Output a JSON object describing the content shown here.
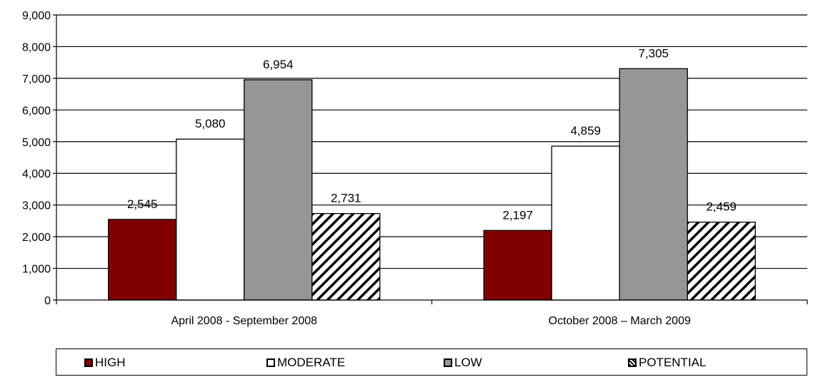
{
  "chart_data": {
    "type": "bar",
    "categories": [
      "April 2008 - September 2008",
      "October 2008 – March 2009"
    ],
    "series": [
      {
        "name": "HIGH",
        "values": [
          2545,
          2197
        ],
        "labels": [
          "2,545",
          "2,197"
        ],
        "color": "#800000",
        "pattern": "solid"
      },
      {
        "name": "MODERATE",
        "values": [
          5080,
          4859
        ],
        "labels": [
          "5,080",
          "4,859"
        ],
        "color": "#ffffff",
        "pattern": "solid"
      },
      {
        "name": "LOW",
        "values": [
          6954,
          7305
        ],
        "labels": [
          "6,954",
          "7,305"
        ],
        "color": "#969696",
        "pattern": "solid"
      },
      {
        "name": "POTENTIAL",
        "values": [
          2731,
          2459
        ],
        "labels": [
          "2,731",
          "2,459"
        ],
        "color": "#ffffff",
        "pattern": "diagonal-hatch"
      }
    ],
    "ylim": [
      0,
      9000
    ],
    "yticks": [
      0,
      1000,
      2000,
      3000,
      4000,
      5000,
      6000,
      7000,
      8000,
      9000
    ],
    "ytick_labels": [
      "0",
      "1,000",
      "2,000",
      "3,000",
      "4,000",
      "5,000",
      "6,000",
      "7,000",
      "8,000",
      "9,000"
    ],
    "grid": "horizontal",
    "legend_position": "bottom",
    "title": "",
    "xlabel": "",
    "ylabel": ""
  }
}
